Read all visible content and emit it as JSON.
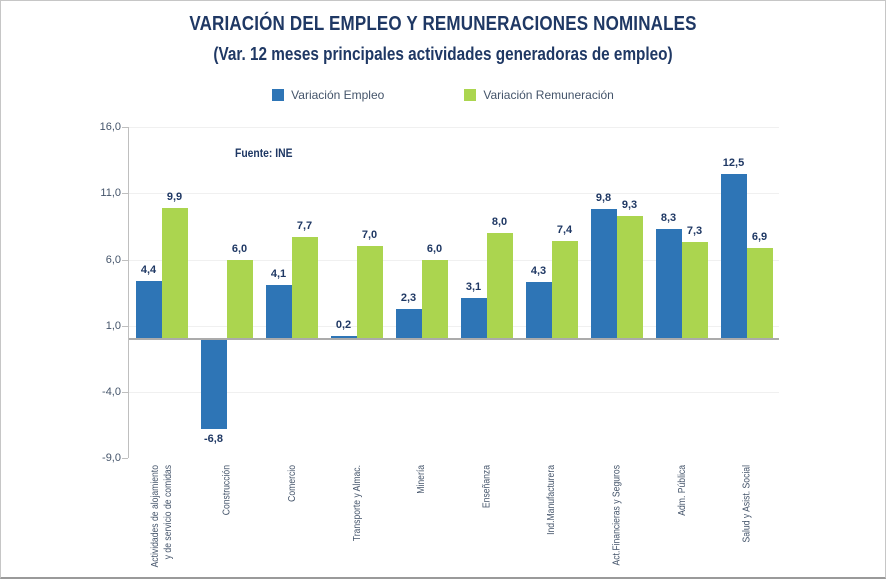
{
  "chart_data": {
    "type": "bar",
    "title": "VARIACIÓN DEL EMPLEO Y REMUNERACIONES NOMINALES",
    "subtitle": "(Var. 12 meses principales actividades generadoras de empleo)",
    "source": "Fuente: INE",
    "categories": [
      [
        "Actividades de alojamiento",
        "y de servicio de comidas"
      ],
      [
        "Construcción"
      ],
      [
        "Comercio"
      ],
      [
        "Transporte y Almac."
      ],
      [
        "Minería"
      ],
      [
        "Enseñanza"
      ],
      [
        "Ind.Manufacturera"
      ],
      [
        "Act.Financieras y Seguros"
      ],
      [
        "Adm. Pública"
      ],
      [
        "Salud y Asist. Social"
      ]
    ],
    "series": [
      {
        "name": "Variación Empleo",
        "color": "#2e75b6",
        "values": [
          4.4,
          -6.8,
          4.1,
          0.2,
          2.3,
          3.1,
          4.3,
          9.8,
          8.3,
          12.5
        ]
      },
      {
        "name": "Variación Remuneración",
        "color": "#abd54f",
        "values": [
          9.9,
          6.0,
          7.7,
          7.0,
          6.0,
          8.0,
          7.4,
          9.3,
          7.3,
          6.9
        ]
      }
    ],
    "y_ticks": [
      16.0,
      11.0,
      6.0,
      1.0,
      -4.0,
      -9.0
    ],
    "ylim": [
      -9.0,
      16.0
    ],
    "decimal_separator": ",",
    "grid": true,
    "legend_position": "top",
    "xlabel": "",
    "ylabel": ""
  },
  "colors": {
    "title_text": "#1f3864",
    "axis_text": "#44546a",
    "data_label_text": "#1f3864",
    "zero_line": "#ababab",
    "gridline": "#f0f0f0",
    "axis_line": "#bfbfbf",
    "background": "#ffffff"
  }
}
